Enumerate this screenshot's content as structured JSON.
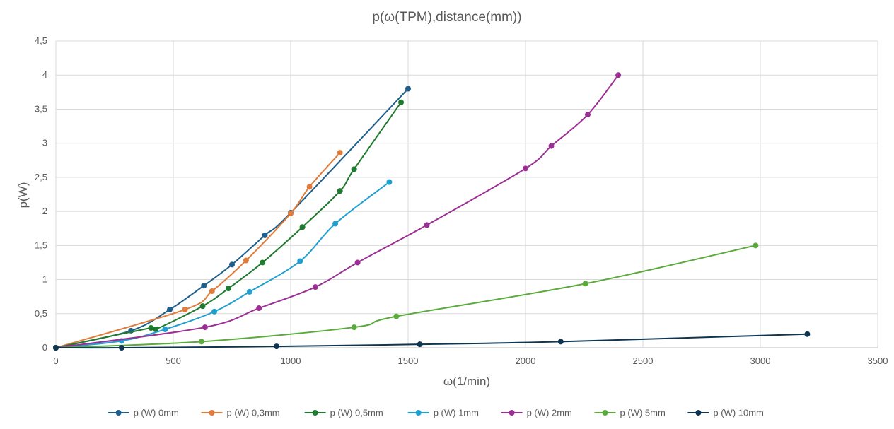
{
  "chart_data": {
    "type": "line",
    "title": "p(ω(TPM),distance(mm))",
    "xlabel": "ω(1/min)",
    "ylabel": "p(W)",
    "xlim": [
      0,
      3500
    ],
    "ylim": [
      0,
      4.5
    ],
    "x_ticks": [
      0,
      500,
      1000,
      1500,
      2000,
      2500,
      3000,
      3500
    ],
    "x_tick_labels": [
      "0",
      "500",
      "1000",
      "1500",
      "2000",
      "2500",
      "3000",
      "3500"
    ],
    "y_ticks": [
      0,
      0.5,
      1,
      1.5,
      2,
      2.5,
      3,
      3.5,
      4,
      4.5
    ],
    "y_tick_labels": [
      "0",
      "0,5",
      "1",
      "1,5",
      "2",
      "2,5",
      "3",
      "3,5",
      "4",
      "4,5"
    ],
    "grid": "both",
    "legend_position": "bottom",
    "series": [
      {
        "name": "p (W) 0mm",
        "color": "#1f5f8b",
        "x": [
          0,
          320,
          485,
          630,
          750,
          890,
          1000,
          1500
        ],
        "y": [
          0,
          0.25,
          0.56,
          0.91,
          1.22,
          1.65,
          1.98,
          3.8
        ]
      },
      {
        "name": "p (W) 0,3mm",
        "color": "#e07b39",
        "x": [
          0,
          550,
          665,
          810,
          1000,
          1080,
          1210
        ],
        "y": [
          0,
          0.56,
          0.83,
          1.28,
          1.97,
          2.36,
          2.86
        ]
      },
      {
        "name": "p (W) 0,5mm",
        "color": "#1e7a2e",
        "x": [
          0,
          405,
          425,
          625,
          735,
          880,
          1050,
          1210,
          1270,
          1470
        ],
        "y": [
          0,
          0.29,
          0.27,
          0.61,
          0.87,
          1.25,
          1.77,
          2.3,
          2.62,
          3.6
        ]
      },
      {
        "name": "p (W) 1mm",
        "color": "#1fa0d0",
        "x": [
          0,
          280,
          465,
          675,
          825,
          1040,
          1190,
          1420
        ],
        "y": [
          0,
          0.1,
          0.27,
          0.53,
          0.82,
          1.27,
          1.82,
          2.43
        ]
      },
      {
        "name": "p (W) 2mm",
        "color": "#9b2f94",
        "x": [
          0,
          635,
          865,
          1105,
          1285,
          1580,
          2000,
          2110,
          2265,
          2395
        ],
        "y": [
          0,
          0.3,
          0.58,
          0.89,
          1.25,
          1.8,
          2.63,
          2.96,
          3.42,
          4.0
        ]
      },
      {
        "name": "p (W) 5mm",
        "color": "#5aaa3c",
        "x": [
          0,
          620,
          1270,
          1450,
          2255,
          2980
        ],
        "y": [
          0,
          0.09,
          0.3,
          0.46,
          0.94,
          1.5
        ]
      },
      {
        "name": "p (W) 10mm",
        "color": "#0f3550",
        "x": [
          0,
          280,
          940,
          1550,
          2150,
          3200
        ],
        "y": [
          0,
          0.0,
          0.02,
          0.05,
          0.09,
          0.2
        ]
      }
    ]
  }
}
